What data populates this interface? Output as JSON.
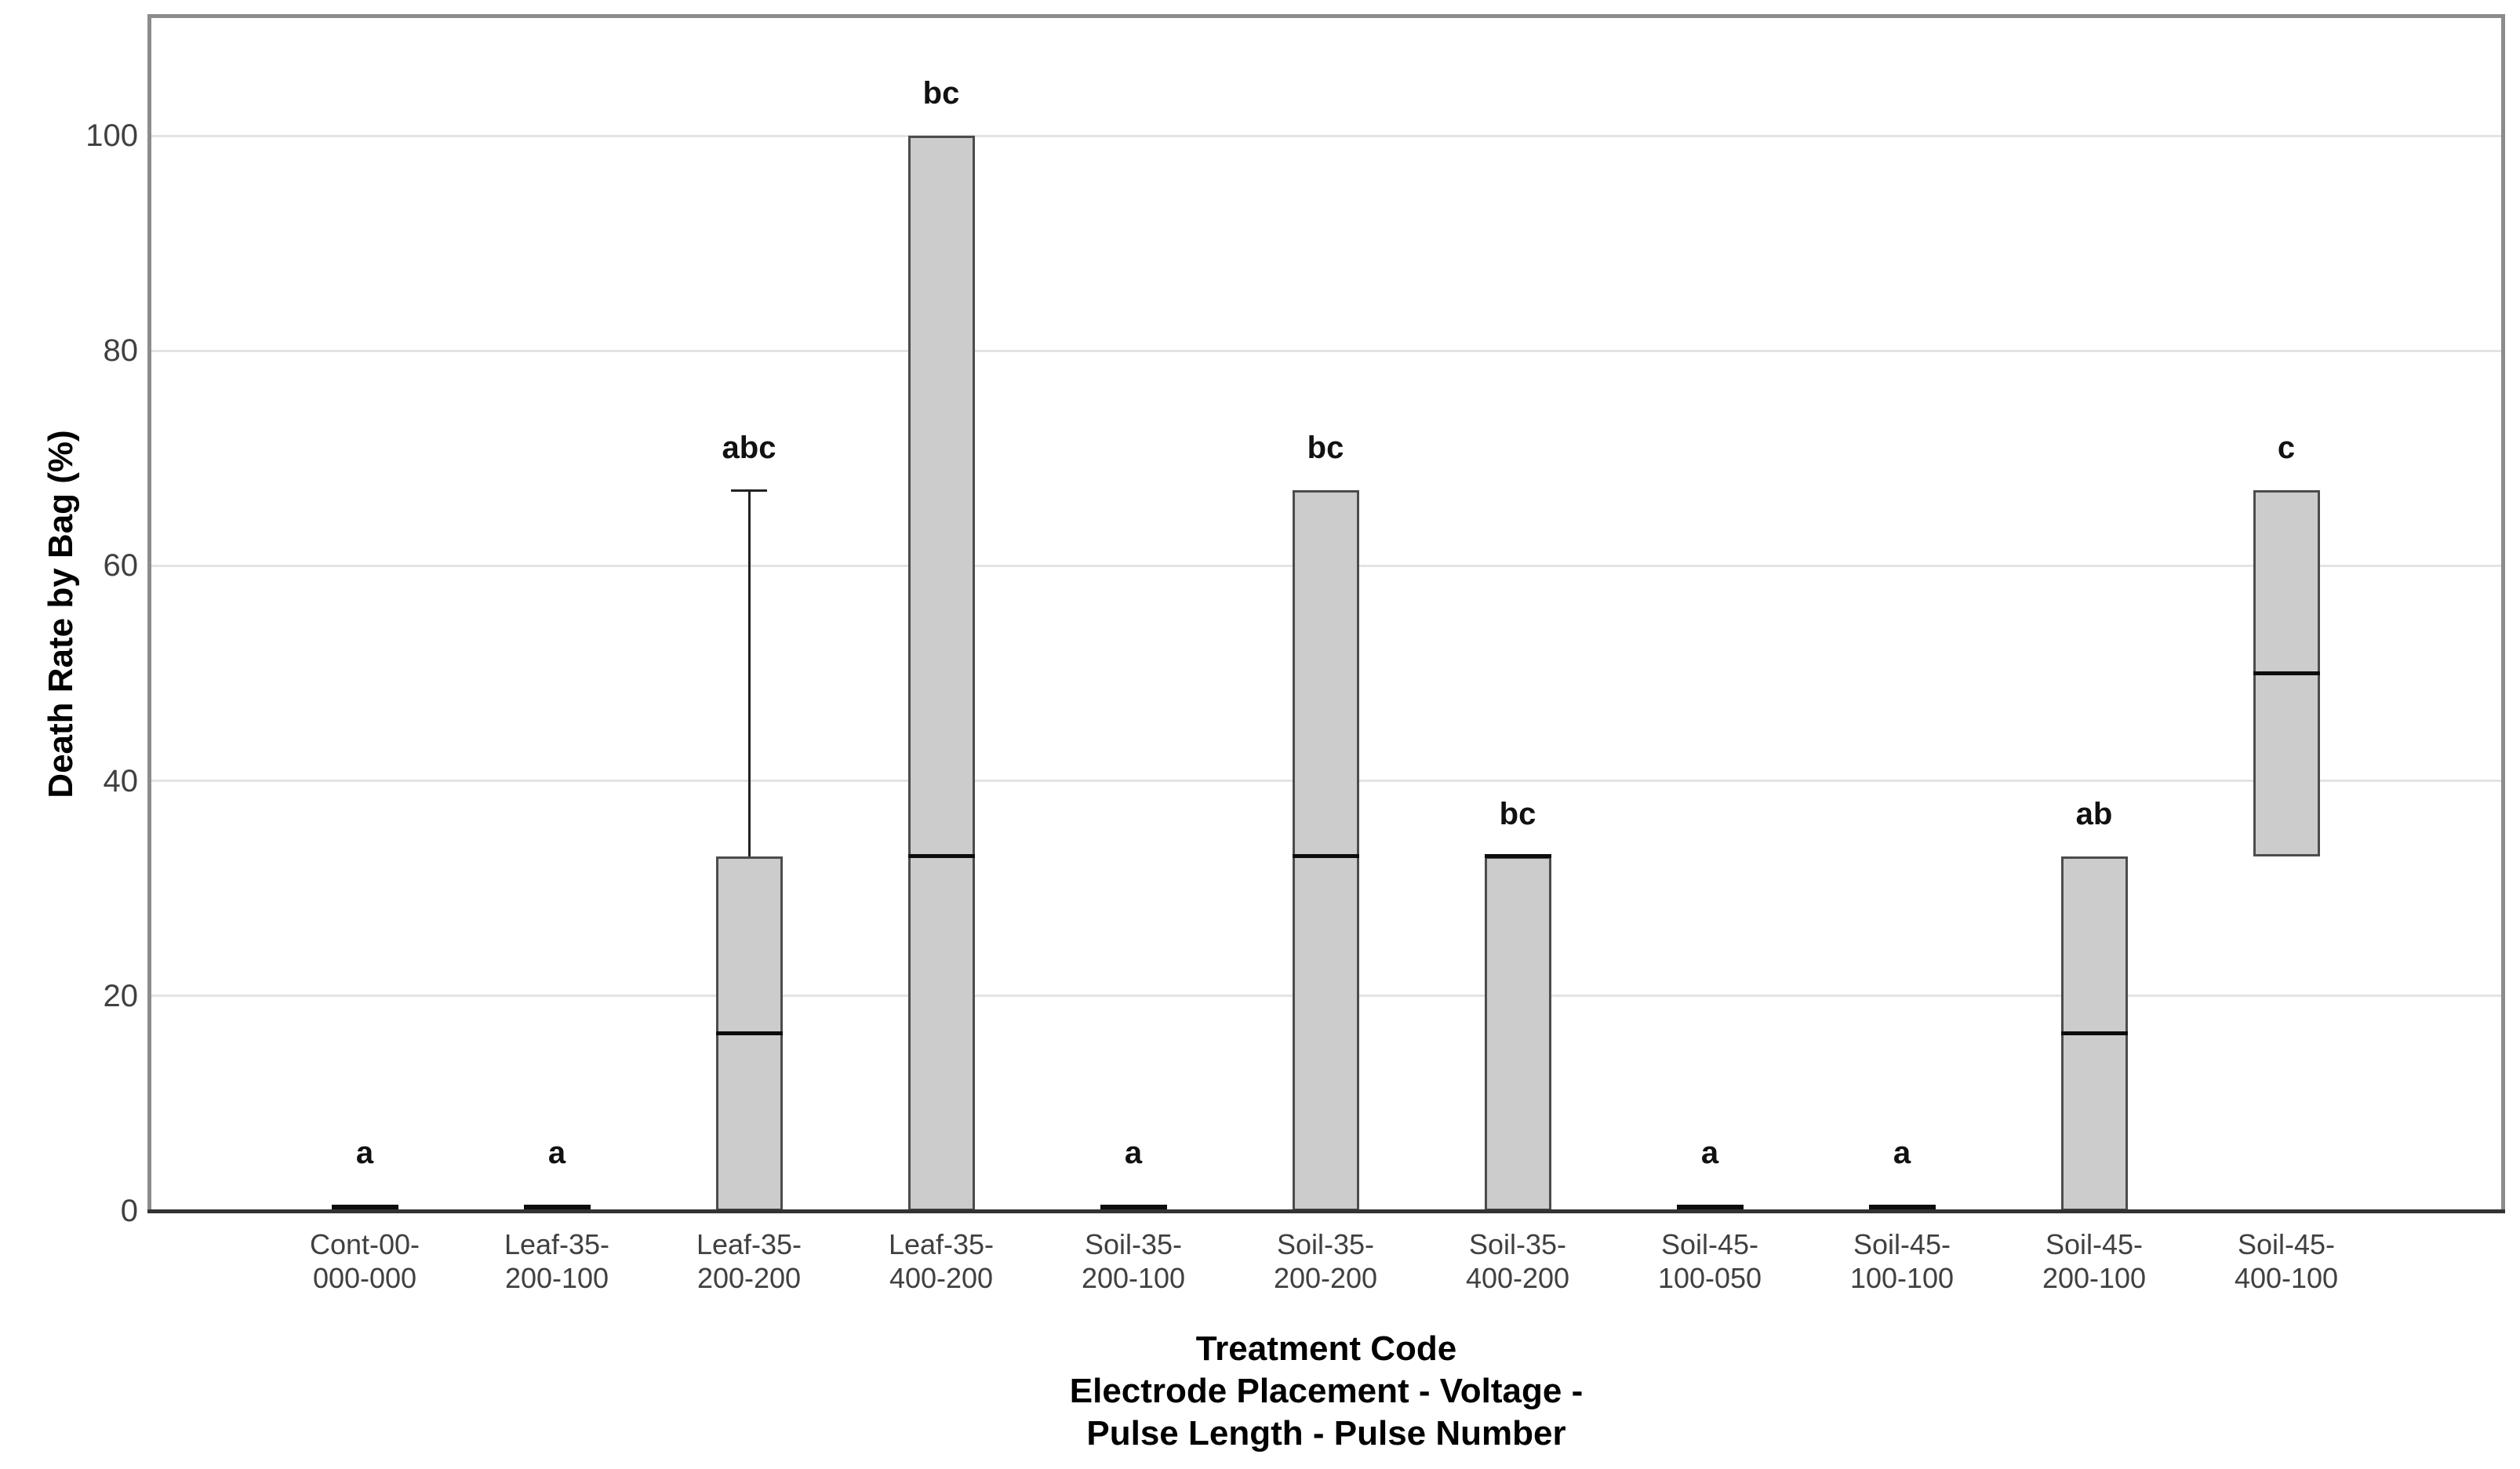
{
  "chart_data": {
    "type": "boxplot",
    "title": "",
    "ylabel": "Death Rate by Bag (%)",
    "xlabel_lines": [
      "Treatment Code",
      "Electrode Placement - Voltage -",
      "Pulse Length - Pulse Number"
    ],
    "ylim": [
      0,
      111.3
    ],
    "yticks": [
      0,
      20,
      40,
      60,
      80,
      100
    ],
    "grid": "horizontal",
    "legend_position": "none",
    "colors": {
      "box_fill": "#cccccc",
      "box_border": "#4c4c4c",
      "median": "#0d0d0d",
      "whisker": "#222222",
      "gridline": "#e3e3e3",
      "frame": "#8c8c8c",
      "baseline": "#333333",
      "tick_label": "#404040",
      "annotation": "#111111",
      "axis_title": "#000000"
    },
    "boxes": [
      {
        "category": [
          "Cont-00-",
          "000-000"
        ],
        "q1": 0,
        "median": 0,
        "q3": 0,
        "whisker_high": null,
        "annotation": "a"
      },
      {
        "category": [
          "Leaf-35-",
          "200-100"
        ],
        "q1": 0,
        "median": 0,
        "q3": 0,
        "whisker_high": null,
        "annotation": "a"
      },
      {
        "category": [
          "Leaf-35-",
          "200-200"
        ],
        "q1": 0,
        "median": 16.5,
        "q3": 33,
        "whisker_high": 67,
        "annotation": "abc"
      },
      {
        "category": [
          "Leaf-35-",
          "400-200"
        ],
        "q1": 0,
        "median": 33,
        "q3": 100,
        "whisker_high": null,
        "annotation": "bc"
      },
      {
        "category": [
          "Soil-35-",
          "200-100"
        ],
        "q1": 0,
        "median": 0,
        "q3": 0,
        "whisker_high": null,
        "annotation": "a"
      },
      {
        "category": [
          "Soil-35-",
          "200-200"
        ],
        "q1": 0,
        "median": 33,
        "q3": 67,
        "whisker_high": null,
        "annotation": "bc"
      },
      {
        "category": [
          "Soil-35-",
          "400-200"
        ],
        "q1": 0,
        "median": 33,
        "q3": 33,
        "whisker_high": null,
        "annotation": "bc"
      },
      {
        "category": [
          "Soil-45-",
          "100-050"
        ],
        "q1": 0,
        "median": 0,
        "q3": 0,
        "whisker_high": null,
        "annotation": "a"
      },
      {
        "category": [
          "Soil-45-",
          "100-100"
        ],
        "q1": 0,
        "median": 0,
        "q3": 0,
        "whisker_high": null,
        "annotation": "a"
      },
      {
        "category": [
          "Soil-45-",
          "200-100"
        ],
        "q1": 0,
        "median": 16.5,
        "q3": 33,
        "whisker_high": null,
        "annotation": "ab"
      },
      {
        "category": [
          "Soil-45-",
          "400-100"
        ],
        "q1": 33,
        "median": 50,
        "q3": 67,
        "whisker_high": null,
        "annotation": "c"
      }
    ]
  }
}
